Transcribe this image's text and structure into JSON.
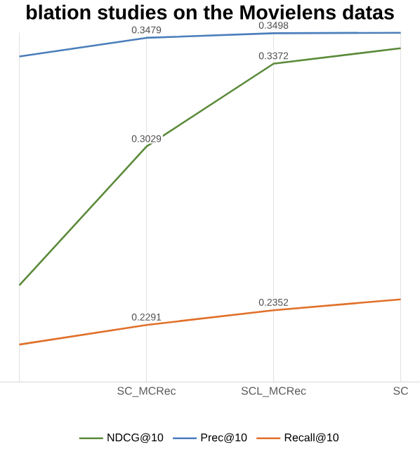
{
  "chart_data": {
    "type": "line",
    "title": "blation studies on the Movielens datas",
    "categories": [
      null,
      "SC_MCRec",
      "SCL_MCRec",
      "SC"
    ],
    "series": [
      {
        "name": "NDCG@10",
        "color": "#5b8a3a",
        "values": [
          0.2455,
          0.3029,
          0.3372,
          0.3436
        ],
        "value_labels": [
          null,
          "0.3029",
          "0.3372",
          null
        ]
      },
      {
        "name": "Prec@10",
        "color": "#4a7ebb",
        "values": [
          0.3402,
          0.3479,
          0.3498,
          0.35
        ],
        "value_labels": [
          null,
          "0.3479",
          "0.3498",
          null
        ]
      },
      {
        "name": "Recall@10",
        "color": "#e0702a",
        "values": [
          0.221,
          0.2291,
          0.2352,
          0.2397
        ],
        "value_labels": [
          null,
          "0.2291",
          "0.2352",
          null
        ]
      }
    ],
    "grid": "x",
    "legend": "bottom",
    "marker": "none",
    "line_style": "solid"
  }
}
